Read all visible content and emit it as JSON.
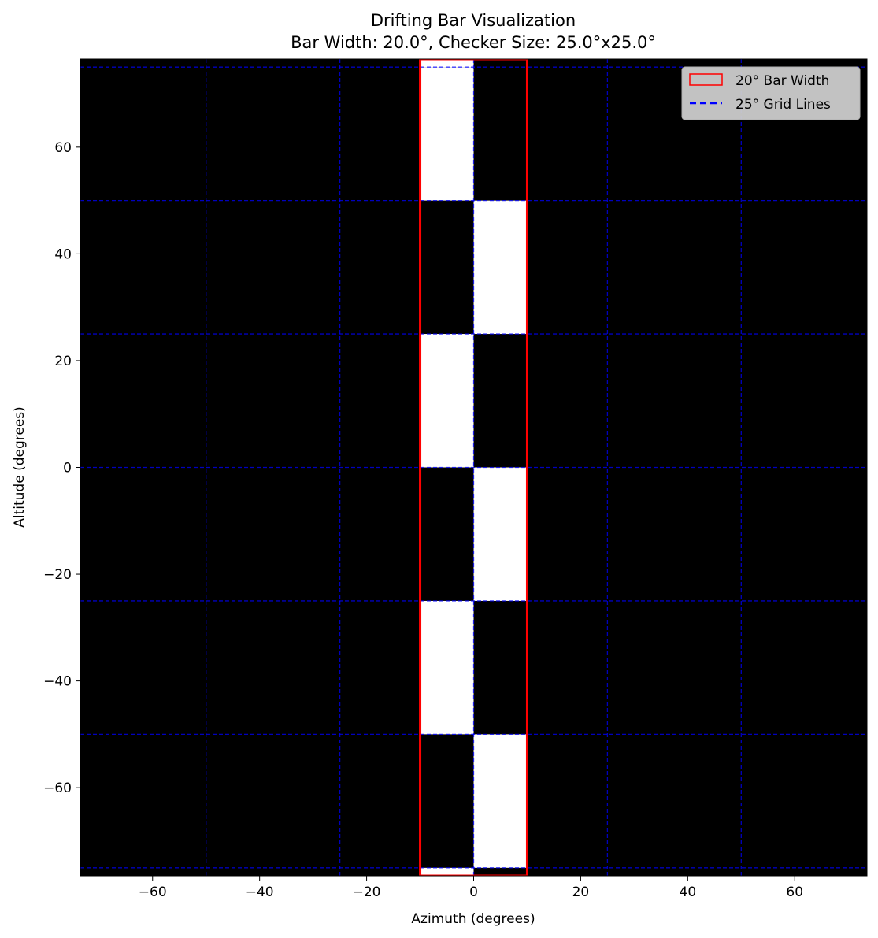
{
  "chart_data": {
    "type": "heatmap",
    "title": "Drifting Bar Visualization",
    "subtitle": "Bar Width: 20.0°, Checker Size: 25.0°x25.0°",
    "xlabel": "Azimuth (degrees)",
    "ylabel": "Altitude (degrees)",
    "xlim": [
      -73.5,
      73.5
    ],
    "ylim": [
      -76.5,
      76.5
    ],
    "xticks": [
      -60,
      -40,
      -20,
      0,
      20,
      40,
      60
    ],
    "yticks": [
      -60,
      -40,
      -20,
      0,
      20,
      40,
      60
    ],
    "xtick_labels": [
      "−60",
      "−40",
      "−20",
      "0",
      "20",
      "40",
      "60"
    ],
    "ytick_labels": [
      "−60",
      "−40",
      "−20",
      "0",
      "20",
      "40",
      "60"
    ],
    "background_color": "#000000",
    "checker_size": 25,
    "bar": {
      "x_range": [
        -10,
        10
      ],
      "y_range": [
        -76.5,
        76.5
      ],
      "color": "#ff0000",
      "legend": "20° Bar Width"
    },
    "white_cells": [
      {
        "x": [
          -10,
          0
        ],
        "y": [
          75,
          76.5
        ]
      },
      {
        "x": [
          -10,
          0
        ],
        "y": [
          50,
          75
        ]
      },
      {
        "x": [
          0,
          10
        ],
        "y": [
          25,
          50
        ]
      },
      {
        "x": [
          -10,
          0
        ],
        "y": [
          0,
          25
        ]
      },
      {
        "x": [
          0,
          10
        ],
        "y": [
          -25,
          0
        ]
      },
      {
        "x": [
          -10,
          0
        ],
        "y": [
          -50,
          -25
        ]
      },
      {
        "x": [
          0,
          10
        ],
        "y": [
          -75,
          -50
        ]
      },
      {
        "x": [
          -10,
          0
        ],
        "y": [
          -76.5,
          -75
        ]
      }
    ],
    "grid": {
      "on": true,
      "style": "dashed",
      "color": "#0000ff",
      "spacing": 25,
      "vertical": [
        -50,
        -25,
        0,
        25,
        50
      ],
      "horizontal": [
        -75,
        -50,
        -25,
        0,
        25,
        50,
        75
      ],
      "legend": "25° Grid Lines"
    },
    "legend_placement": "top-right"
  }
}
